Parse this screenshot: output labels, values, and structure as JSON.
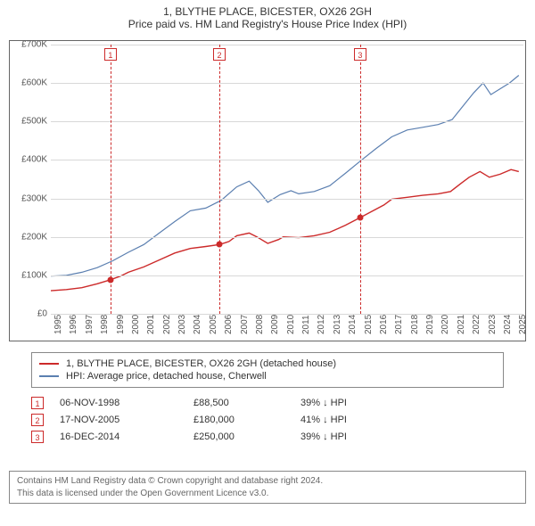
{
  "title": {
    "line1": "1, BLYTHE PLACE, BICESTER, OX26 2GH",
    "line2": "Price paid vs. HM Land Registry's House Price Index (HPI)"
  },
  "chart": {
    "type": "line",
    "background_color": "#ffffff",
    "grid_color": "#d8d8d8",
    "axis_color": "#666666",
    "font_size_axis": 10,
    "x_range": [
      1995,
      2025.5
    ],
    "y_range": [
      0,
      700000
    ],
    "y_ticks": [
      0,
      100000,
      200000,
      300000,
      400000,
      500000,
      600000,
      700000
    ],
    "y_tick_labels": [
      "£0",
      "£100K",
      "£200K",
      "£300K",
      "£400K",
      "£500K",
      "£600K",
      "£700K"
    ],
    "x_ticks": [
      1995,
      1996,
      1997,
      1998,
      1999,
      2000,
      2001,
      2002,
      2003,
      2004,
      2005,
      2006,
      2007,
      2008,
      2009,
      2010,
      2011,
      2012,
      2013,
      2014,
      2015,
      2016,
      2017,
      2018,
      2019,
      2020,
      2021,
      2022,
      2023,
      2024,
      2025
    ],
    "series": [
      {
        "name": "price_paid",
        "label": "1, BLYTHE PLACE, BICESTER, OX26 2GH (detached house)",
        "color": "#cc2a2a",
        "line_width": 1.4,
        "points": [
          [
            1995,
            60000
          ],
          [
            1996,
            63000
          ],
          [
            1997,
            68000
          ],
          [
            1998,
            78000
          ],
          [
            1998.85,
            88500
          ],
          [
            1999.5,
            98000
          ],
          [
            2000,
            108000
          ],
          [
            2001,
            122000
          ],
          [
            2002,
            140000
          ],
          [
            2003,
            158000
          ],
          [
            2004,
            170000
          ],
          [
            2005,
            175000
          ],
          [
            2005.88,
            180000
          ],
          [
            2006.5,
            188000
          ],
          [
            2007,
            203000
          ],
          [
            2007.8,
            210000
          ],
          [
            2008.3,
            200000
          ],
          [
            2009,
            183000
          ],
          [
            2009.7,
            193000
          ],
          [
            2010,
            200000
          ],
          [
            2011,
            198000
          ],
          [
            2012,
            203000
          ],
          [
            2013,
            212000
          ],
          [
            2014,
            230000
          ],
          [
            2014.96,
            250000
          ],
          [
            2015.8,
            268000
          ],
          [
            2016.5,
            283000
          ],
          [
            2017,
            298000
          ],
          [
            2018,
            303000
          ],
          [
            2019,
            308000
          ],
          [
            2020,
            312000
          ],
          [
            2020.8,
            318000
          ],
          [
            2021.5,
            340000
          ],
          [
            2022,
            355000
          ],
          [
            2022.7,
            370000
          ],
          [
            2023.3,
            355000
          ],
          [
            2024,
            363000
          ],
          [
            2024.7,
            375000
          ],
          [
            2025.2,
            370000
          ]
        ]
      },
      {
        "name": "hpi",
        "label": "HPI: Average price, detached house, Cherwell",
        "color": "#5b7fb0",
        "line_width": 1.2,
        "points": [
          [
            1995,
            98000
          ],
          [
            1996,
            100000
          ],
          [
            1997,
            108000
          ],
          [
            1998,
            120000
          ],
          [
            1999,
            138000
          ],
          [
            2000,
            160000
          ],
          [
            2001,
            180000
          ],
          [
            2002,
            210000
          ],
          [
            2003,
            240000
          ],
          [
            2004,
            268000
          ],
          [
            2005,
            275000
          ],
          [
            2006,
            295000
          ],
          [
            2007,
            330000
          ],
          [
            2007.8,
            345000
          ],
          [
            2008.4,
            320000
          ],
          [
            2009,
            290000
          ],
          [
            2009.8,
            310000
          ],
          [
            2010.5,
            320000
          ],
          [
            2011,
            312000
          ],
          [
            2012,
            318000
          ],
          [
            2013,
            333000
          ],
          [
            2014,
            365000
          ],
          [
            2015,
            398000
          ],
          [
            2016,
            430000
          ],
          [
            2017,
            460000
          ],
          [
            2018,
            478000
          ],
          [
            2019,
            485000
          ],
          [
            2020,
            492000
          ],
          [
            2020.9,
            505000
          ],
          [
            2021.6,
            540000
          ],
          [
            2022.3,
            575000
          ],
          [
            2022.9,
            600000
          ],
          [
            2023.4,
            570000
          ],
          [
            2024,
            585000
          ],
          [
            2024.6,
            600000
          ],
          [
            2025.2,
            620000
          ]
        ]
      }
    ],
    "sale_markers": [
      {
        "n": "1",
        "x": 1998.85,
        "y": 88500
      },
      {
        "n": "2",
        "x": 2005.88,
        "y": 180000
      },
      {
        "n": "3",
        "x": 2014.96,
        "y": 250000
      }
    ],
    "marker_style": {
      "border_color": "#cc2a2a",
      "vline_color": "#cc2a2a",
      "vline_dash": true,
      "box_bg": "#ffffff",
      "dot_color": "#cc2a2a"
    }
  },
  "legend": {
    "items": [
      {
        "color": "#cc2a2a",
        "label": "1, BLYTHE PLACE, BICESTER, OX26 2GH (detached house)"
      },
      {
        "color": "#5b7fb0",
        "label": "HPI: Average price, detached house, Cherwell"
      }
    ]
  },
  "sales": [
    {
      "n": "1",
      "date": "06-NOV-1998",
      "price": "£88,500",
      "delta": "39% ↓ HPI"
    },
    {
      "n": "2",
      "date": "17-NOV-2005",
      "price": "£180,000",
      "delta": "41% ↓ HPI"
    },
    {
      "n": "3",
      "date": "16-DEC-2014",
      "price": "£250,000",
      "delta": "39% ↓ HPI"
    }
  ],
  "footer": {
    "line1": "Contains HM Land Registry data © Crown copyright and database right 2024.",
    "line2": "This data is licensed under the Open Government Licence v3.0."
  }
}
